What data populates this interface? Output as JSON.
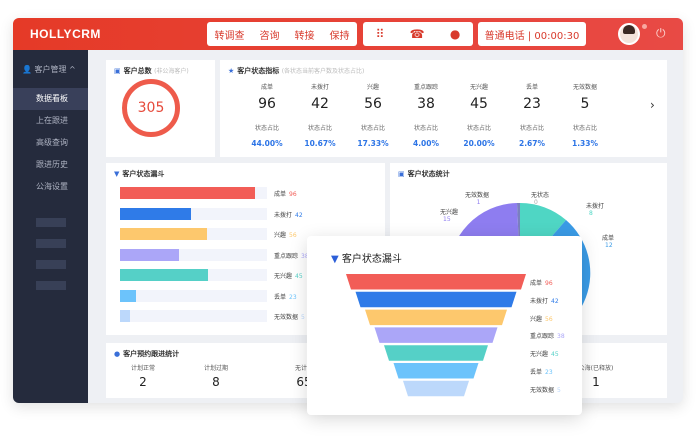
{
  "header": {
    "logo": "HOLLYCRM",
    "actions": [
      "转调查",
      "咨询",
      "转接",
      "保持"
    ],
    "call_type": "普通电话",
    "timer": "00:00:30"
  },
  "sidebar": {
    "group": "客户管理",
    "items": [
      "数据看板",
      "上在跟进",
      "高级查询",
      "跟进历史",
      "公海设置"
    ],
    "active": 0
  },
  "total": {
    "title": "客户总数",
    "subtitle": "(非公海客户)",
    "value": "305"
  },
  "indicators": {
    "title": "客户状态指标",
    "subtitle": "(各状态当前客户数及状态占比)",
    "ratio_label": "状态占比",
    "items": [
      {
        "label": "成单",
        "value": "96",
        "pct": "44.00%"
      },
      {
        "label": "未拨打",
        "value": "42",
        "pct": "10.67%"
      },
      {
        "label": "兴趣",
        "value": "56",
        "pct": "17.33%"
      },
      {
        "label": "重点跟踪",
        "value": "38",
        "pct": "4.00%"
      },
      {
        "label": "无兴趣",
        "value": "45",
        "pct": "20.00%"
      },
      {
        "label": "丢单",
        "value": "23",
        "pct": "2.67%"
      },
      {
        "label": "无效数据",
        "value": "5",
        "pct": "1.33%"
      }
    ]
  },
  "funnel": {
    "title": "客户状态漏斗",
    "items": [
      {
        "label": "成单",
        "value": "96",
        "color": "#f25d57"
      },
      {
        "label": "未拨打",
        "value": "42",
        "color": "#2f7be8"
      },
      {
        "label": "兴趣",
        "value": "56",
        "color": "#fdc86d"
      },
      {
        "label": "重点跟踪",
        "value": "38",
        "color": "#aba6f8"
      },
      {
        "label": "无兴趣",
        "value": "45",
        "color": "#55d0c7"
      },
      {
        "label": "丢单",
        "value": "23",
        "color": "#6cc3fb"
      },
      {
        "label": "无效数据",
        "value": "5",
        "color": "#bcd8fb"
      }
    ]
  },
  "pie": {
    "title": "客户状态统计",
    "items": [
      {
        "label": "无效数据",
        "value": "1"
      },
      {
        "label": "无兴趣",
        "value": "15"
      },
      {
        "label": "无状态",
        "value": "0"
      },
      {
        "label": "未拨打",
        "value": "8"
      },
      {
        "label": "成单",
        "value": "12"
      }
    ]
  },
  "followup": {
    "title": "客户预约跟进统计",
    "items": [
      {
        "label": "计划正常",
        "value": "2"
      },
      {
        "label": "计划过期",
        "value": "8"
      },
      {
        "label": "无计划",
        "value": "65"
      },
      {
        "label": "公海(已释放)",
        "value": "1"
      }
    ]
  }
}
